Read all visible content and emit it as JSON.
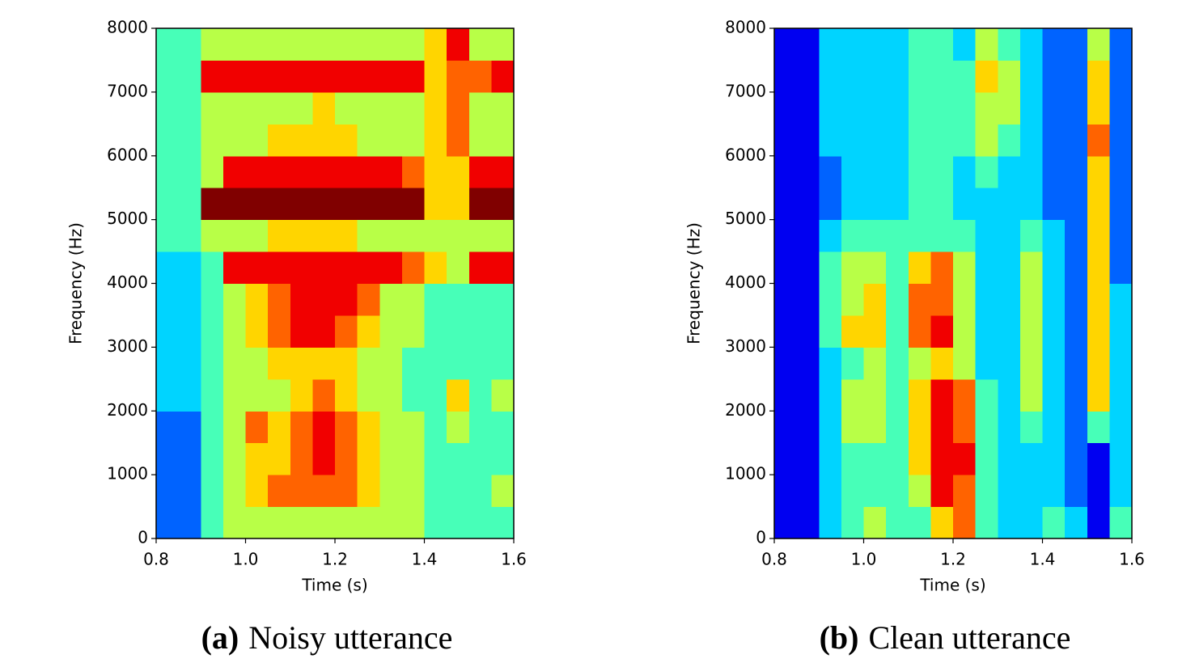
{
  "chart_data": [
    {
      "type": "heatmap",
      "colormap": "jet",
      "label": "(a)",
      "caption": "Noisy utterance",
      "xlabel": "Time (s)",
      "ylabel": "Frequency (Hz)",
      "xlim": [
        0.8,
        1.6
      ],
      "ylim": [
        0,
        8000
      ],
      "zlim": [
        0,
        9
      ],
      "xticks": [
        0.8,
        {
          "value": 1,
          "label": "1.0"
        },
        1.2,
        1.4,
        1.6
      ],
      "yticks": [
        0,
        1000,
        2000,
        3000,
        4000,
        5000,
        6000,
        7000,
        8000
      ],
      "xbins": [
        0.8,
        0.85,
        0.9,
        0.95,
        1,
        1.05,
        1.1,
        1.15,
        1.2,
        1.25,
        1.3,
        1.35,
        1.4,
        1.45,
        1.5,
        1.55,
        1.6
      ],
      "ybins": [
        0,
        500,
        1000,
        1500,
        2000,
        2500,
        3000,
        3500,
        4000,
        4500,
        5000,
        5500,
        6000,
        6500,
        7000,
        7500,
        8000
      ],
      "values": [
        [
          2,
          2,
          4,
          5,
          5,
          5,
          5,
          5,
          5,
          5,
          5,
          5,
          4,
          4,
          4,
          4
        ],
        [
          2,
          2,
          4,
          5,
          6,
          7,
          7,
          7,
          7,
          6,
          5,
          5,
          4,
          4,
          4,
          5
        ],
        [
          2,
          2,
          4,
          5,
          6,
          6,
          7,
          8,
          7,
          6,
          5,
          5,
          4,
          4,
          4,
          4
        ],
        [
          2,
          2,
          4,
          5,
          7,
          6,
          7,
          8,
          7,
          6,
          5,
          5,
          4,
          5,
          4,
          4
        ],
        [
          3,
          3,
          4,
          5,
          5,
          5,
          6,
          7,
          6,
          5,
          5,
          4,
          4,
          6,
          4,
          5
        ],
        [
          3,
          3,
          4,
          5,
          5,
          6,
          6,
          6,
          6,
          5,
          5,
          4,
          4,
          4,
          4,
          4
        ],
        [
          3,
          3,
          4,
          5,
          6,
          7,
          8,
          8,
          7,
          6,
          5,
          5,
          4,
          4,
          4,
          4
        ],
        [
          3,
          3,
          4,
          5,
          6,
          7,
          8,
          8,
          8,
          7,
          5,
          5,
          4,
          4,
          4,
          4
        ],
        [
          3,
          3,
          4,
          8,
          8,
          8,
          8,
          8,
          8,
          8,
          8,
          7,
          6,
          5,
          8,
          8
        ],
        [
          4,
          4,
          5,
          5,
          5,
          6,
          6,
          6,
          6,
          5,
          5,
          5,
          5,
          5,
          5,
          5
        ],
        [
          4,
          4,
          9,
          9,
          9,
          9,
          9,
          9,
          9,
          9,
          9,
          9,
          6,
          6,
          9,
          9
        ],
        [
          4,
          4,
          5,
          8,
          8,
          8,
          8,
          8,
          8,
          8,
          8,
          7,
          6,
          6,
          8,
          8
        ],
        [
          4,
          4,
          5,
          5,
          5,
          6,
          6,
          6,
          6,
          5,
          5,
          5,
          6,
          7,
          5,
          5
        ],
        [
          4,
          4,
          5,
          5,
          5,
          5,
          5,
          6,
          5,
          5,
          5,
          5,
          6,
          7,
          5,
          5
        ],
        [
          4,
          4,
          8,
          8,
          8,
          8,
          8,
          8,
          8,
          8,
          8,
          8,
          6,
          7,
          7,
          8
        ],
        [
          4,
          4,
          5,
          5,
          5,
          5,
          5,
          5,
          5,
          5,
          5,
          5,
          6,
          8,
          5,
          5
        ]
      ]
    },
    {
      "type": "heatmap",
      "colormap": "jet",
      "label": "(b)",
      "caption": "Clean utterance",
      "xlabel": "Time (s)",
      "ylabel": "Frequency (Hz)",
      "xlim": [
        0.8,
        1.6
      ],
      "ylim": [
        0,
        8000
      ],
      "zlim": [
        0,
        9
      ],
      "xticks": [
        0.8,
        {
          "value": 1,
          "label": "1.0"
        },
        1.2,
        1.4,
        1.6
      ],
      "yticks": [
        0,
        1000,
        2000,
        3000,
        4000,
        5000,
        6000,
        7000,
        8000
      ],
      "xbins": [
        0.8,
        0.85,
        0.9,
        0.95,
        1,
        1.05,
        1.1,
        1.15,
        1.2,
        1.25,
        1.3,
        1.35,
        1.4,
        1.45,
        1.5,
        1.55,
        1.6
      ],
      "ybins": [
        0,
        500,
        1000,
        1500,
        2000,
        2500,
        3000,
        3500,
        4000,
        4500,
        5000,
        5500,
        6000,
        6500,
        7000,
        7500,
        8000
      ],
      "values": [
        [
          1,
          1,
          3,
          4,
          5,
          4,
          4,
          6,
          7,
          4,
          3,
          3,
          4,
          3,
          1,
          4
        ],
        [
          1,
          1,
          3,
          4,
          4,
          4,
          5,
          8,
          7,
          4,
          3,
          3,
          3,
          2,
          1,
          3
        ],
        [
          1,
          1,
          3,
          4,
          4,
          4,
          6,
          8,
          8,
          4,
          3,
          3,
          3,
          2,
          1,
          3
        ],
        [
          1,
          1,
          3,
          5,
          5,
          4,
          6,
          8,
          7,
          4,
          3,
          4,
          3,
          2,
          4,
          3
        ],
        [
          1,
          1,
          3,
          5,
          5,
          4,
          6,
          8,
          7,
          4,
          3,
          5,
          3,
          2,
          6,
          3
        ],
        [
          1,
          1,
          3,
          4,
          5,
          4,
          5,
          6,
          5,
          3,
          3,
          5,
          3,
          2,
          6,
          3
        ],
        [
          1,
          1,
          4,
          6,
          6,
          4,
          7,
          8,
          5,
          3,
          3,
          5,
          3,
          2,
          6,
          3
        ],
        [
          1,
          1,
          4,
          5,
          6,
          4,
          7,
          7,
          5,
          3,
          3,
          5,
          3,
          2,
          6,
          3
        ],
        [
          1,
          1,
          4,
          5,
          5,
          4,
          6,
          7,
          5,
          3,
          3,
          5,
          3,
          2,
          6,
          2
        ],
        [
          1,
          1,
          3,
          4,
          4,
          4,
          4,
          4,
          4,
          3,
          3,
          4,
          3,
          2,
          6,
          2
        ],
        [
          1,
          1,
          2,
          3,
          3,
          3,
          4,
          4,
          3,
          3,
          3,
          3,
          2,
          2,
          6,
          2
        ],
        [
          1,
          1,
          2,
          3,
          3,
          3,
          4,
          4,
          3,
          4,
          3,
          3,
          2,
          2,
          6,
          2
        ],
        [
          1,
          1,
          3,
          3,
          3,
          3,
          4,
          4,
          4,
          5,
          4,
          3,
          2,
          2,
          7,
          2
        ],
        [
          1,
          1,
          3,
          3,
          3,
          3,
          4,
          4,
          4,
          5,
          5,
          3,
          2,
          2,
          6,
          2
        ],
        [
          1,
          1,
          3,
          3,
          3,
          3,
          4,
          4,
          4,
          6,
          5,
          3,
          2,
          2,
          6,
          2
        ],
        [
          1,
          1,
          3,
          3,
          3,
          3,
          4,
          4,
          3,
          5,
          4,
          3,
          2,
          2,
          5,
          2
        ]
      ]
    }
  ]
}
